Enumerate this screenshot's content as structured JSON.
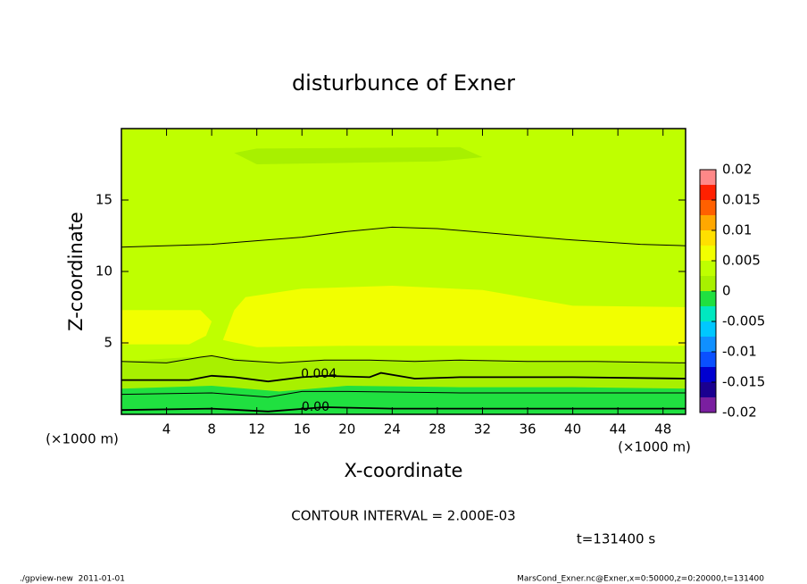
{
  "chart_data": {
    "type": "contour",
    "title": "disturbunce of Exner",
    "xlabel": "X-coordinate",
    "ylabel": "Z-coordinate",
    "x_unit": "(×1000 m)",
    "y_unit": "(×1000 m)",
    "xlim": [
      0,
      50
    ],
    "ylim": [
      0,
      20
    ],
    "xticks": [
      4,
      8,
      12,
      16,
      20,
      24,
      28,
      32,
      36,
      40,
      44,
      48
    ],
    "yticks": [
      5,
      10,
      15
    ],
    "colorbar": {
      "lim": [
        -0.02,
        0.02
      ],
      "ticks": [
        0.02,
        0.015,
        0.01,
        0.005,
        0,
        -0.005,
        -0.01,
        -0.015,
        -0.02
      ],
      "levels": [
        -0.02,
        -0.0175,
        -0.015,
        -0.0125,
        -0.01,
        -0.0075,
        -0.005,
        -0.0025,
        0,
        0.0025,
        0.005,
        0.0075,
        0.01,
        0.0125,
        0.015,
        0.0175
      ],
      "colors": [
        "#7a1fa0",
        "#1a0090",
        "#0000d0",
        "#0a50ff",
        "#1090ff",
        "#00c8ff",
        "#00e8c0",
        "#20e040",
        "#a8f000",
        "#bfff00",
        "#f2ff00",
        "#ffe000",
        "#ffa800",
        "#ff6000",
        "#ff2000",
        "#ff8888"
      ]
    },
    "regions": [
      {
        "level": 0.0025,
        "x": [
          0,
          50,
          50,
          0
        ],
        "y": [
          0,
          0,
          20,
          20
        ]
      },
      {
        "level": 0.005,
        "x": [
          0,
          6,
          7.5,
          8,
          7,
          0
        ],
        "y": [
          4.9,
          4.9,
          5.5,
          6.5,
          7.3,
          7.3
        ]
      },
      {
        "level": 0.005,
        "x": [
          9,
          12,
          20,
          50,
          50,
          40,
          32,
          24,
          16,
          11,
          10
        ],
        "y": [
          5.2,
          4.7,
          4.8,
          4.8,
          7.5,
          7.6,
          8.7,
          9,
          8.8,
          8.2,
          7.3
        ]
      },
      {
        "level": 0,
        "x": [
          10,
          12,
          30,
          32,
          28,
          12
        ],
        "y": [
          18.3,
          18.6,
          18.7,
          18,
          17.7,
          17.5
        ]
      },
      {
        "level": 0,
        "x": [
          0,
          8,
          14,
          18,
          24,
          30,
          42,
          50,
          50,
          0
        ],
        "y": [
          3.7,
          4.1,
          3.6,
          3.8,
          3.8,
          3.8,
          3.7,
          3.6,
          0,
          0
        ]
      },
      {
        "level": -0.0025,
        "x": [
          0,
          8,
          14,
          20,
          30,
          40,
          50,
          50,
          0
        ],
        "y": [
          1.8,
          2,
          1.6,
          2,
          1.9,
          1.9,
          1.8,
          0,
          0
        ]
      }
    ],
    "contours": [
      {
        "level": 0.006,
        "x": [
          0,
          8,
          16,
          20,
          24,
          28,
          34,
          40,
          46,
          50
        ],
        "y": [
          11.7,
          11.9,
          12.4,
          12.8,
          13.1,
          13,
          12.6,
          12.2,
          11.9,
          11.8
        ]
      },
      {
        "level": 0.006,
        "x": [
          0,
          4,
          7,
          8,
          10,
          14,
          18,
          22,
          26,
          30,
          36,
          42,
          50
        ],
        "y": [
          3.7,
          3.6,
          4,
          4.1,
          3.8,
          3.6,
          3.8,
          3.8,
          3.7,
          3.8,
          3.7,
          3.7,
          3.6
        ]
      },
      {
        "level": 0.004,
        "x": [
          0,
          6,
          8,
          10,
          13,
          16,
          18,
          22,
          23,
          26,
          30,
          40,
          50
        ],
        "y": [
          2.4,
          2.4,
          2.7,
          2.6,
          2.3,
          2.6,
          2.7,
          2.6,
          2.9,
          2.5,
          2.6,
          2.6,
          2.5
        ]
      },
      {
        "level": 0.002,
        "x": [
          0,
          8,
          13,
          16,
          20,
          30,
          40,
          50
        ],
        "y": [
          1.4,
          1.5,
          1.2,
          1.6,
          1.6,
          1.5,
          1.5,
          1.5
        ]
      },
      {
        "level": 0,
        "x": [
          0,
          8,
          13,
          18,
          24,
          30,
          40,
          50
        ],
        "y": [
          0.3,
          0.4,
          0.2,
          0.5,
          0.4,
          0.4,
          0.4,
          0.4
        ]
      }
    ],
    "contour_labels": [
      {
        "text": 0.004,
        "x": 17.5,
        "y": 2.8
      },
      {
        "text": {
          "value": 0,
          "label": "0.00"
        },
        "x": 17.2,
        "y": 0.5
      }
    ],
    "contour_interval_text": "CONTOUR INTERVAL = 2.000E-03",
    "time_text": "t=131400 s",
    "footer_left": "./gpview-new  2011-01-01",
    "footer_right": "MarsCond_Exner.nc@Exner,x=0:50000,z=0:20000,t=131400"
  }
}
